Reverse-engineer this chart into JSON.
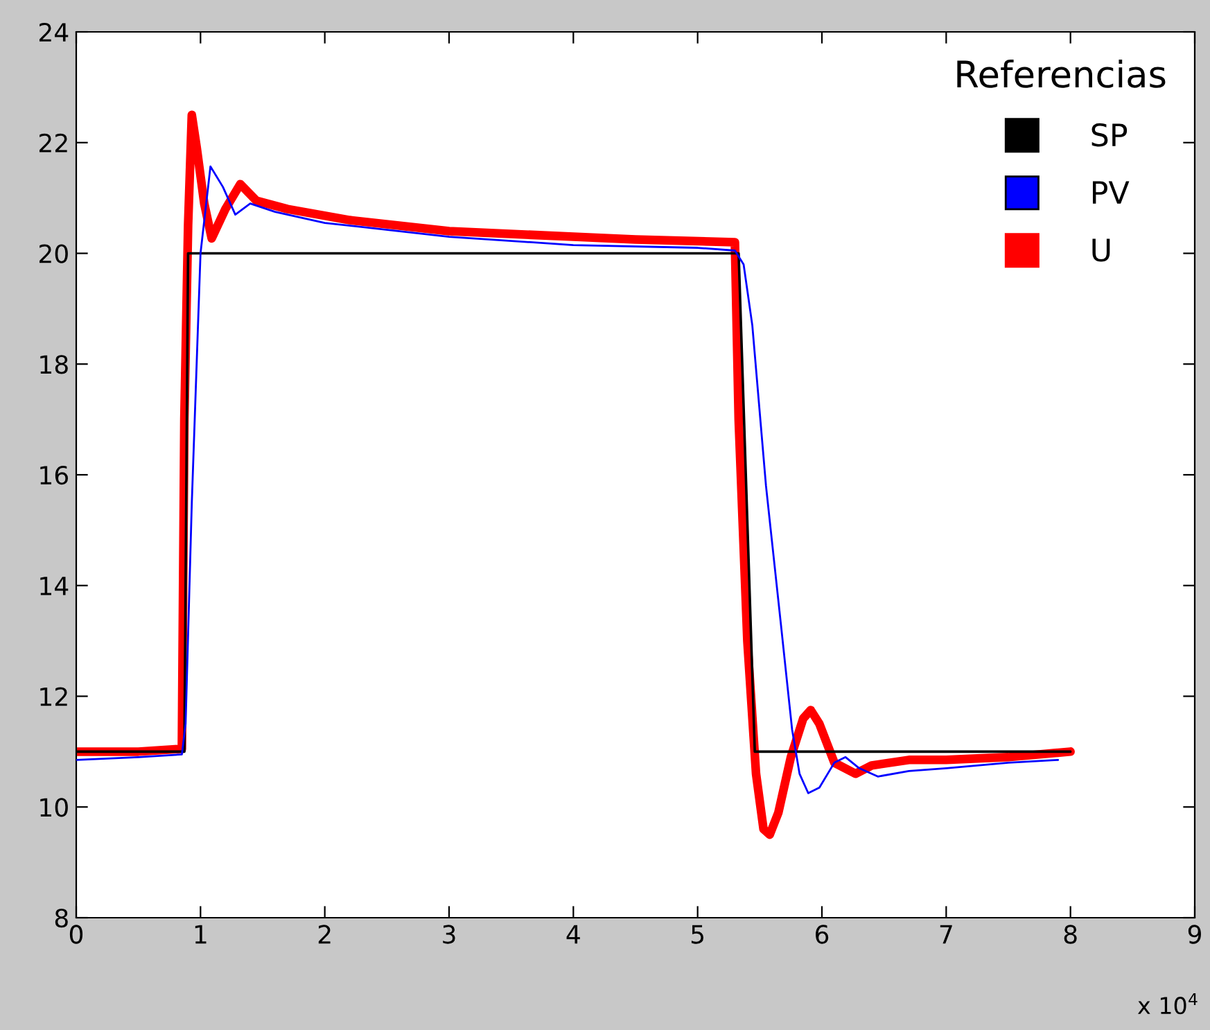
{
  "chart_data": {
    "type": "line",
    "legend_title": "Referencias",
    "legend": "top right",
    "grid": false,
    "xlim": [
      0,
      9
    ],
    "xticks": [
      0,
      1,
      2,
      3,
      4,
      5,
      6,
      7,
      8,
      9
    ],
    "ylim": [
      8,
      24
    ],
    "yticks": [
      8,
      10,
      12,
      14,
      16,
      18,
      20,
      22,
      24
    ],
    "annotations": [
      "x 10$^{4}$"
    ],
    "series": [
      {
        "name": "SP",
        "color": "#000000",
        "x": [
          0,
          0.87,
          0.9,
          5.33,
          5.46,
          8.0
        ],
        "values": [
          11,
          11,
          20,
          20,
          11,
          11
        ]
      },
      {
        "name": "PV",
        "color": "#0000ff",
        "x": [
          0,
          0.5,
          0.85,
          0.88,
          0.93,
          1.0,
          1.08,
          1.18,
          1.28,
          1.4,
          1.6,
          2.0,
          3.0,
          4.0,
          5.0,
          5.3,
          5.37,
          5.44,
          5.55,
          5.67,
          5.76,
          5.82,
          5.89,
          5.98,
          6.1,
          6.19,
          6.3,
          6.45,
          6.7,
          7.0,
          7.5,
          7.9
        ],
        "values": [
          10.85,
          10.9,
          10.95,
          11.5,
          15.5,
          20.0,
          21.57,
          21.2,
          20.7,
          20.9,
          20.75,
          20.55,
          20.3,
          20.15,
          20.1,
          20.05,
          19.8,
          18.7,
          15.8,
          13.3,
          11.4,
          10.6,
          10.25,
          10.35,
          10.8,
          10.9,
          10.7,
          10.55,
          10.65,
          10.7,
          10.8,
          10.85
        ]
      },
      {
        "name": "U",
        "color": "#ff0000",
        "x": [
          0,
          0.5,
          0.85,
          0.87,
          0.9,
          0.93,
          0.97,
          1.03,
          1.09,
          1.2,
          1.32,
          1.45,
          1.7,
          2.2,
          3.0,
          4.0,
          4.5,
          5.3,
          5.33,
          5.4,
          5.47,
          5.53,
          5.58,
          5.65,
          5.75,
          5.85,
          5.91,
          5.98,
          6.1,
          6.27,
          6.4,
          6.7,
          7.0,
          7.5,
          8.0
        ],
        "values": [
          11.0,
          11.0,
          11.05,
          17.0,
          20.5,
          22.5,
          21.9,
          20.9,
          20.27,
          20.8,
          21.25,
          20.95,
          20.8,
          20.6,
          20.4,
          20.3,
          20.25,
          20.2,
          17.0,
          13.0,
          10.6,
          9.6,
          9.5,
          9.9,
          10.9,
          11.6,
          11.75,
          11.5,
          10.8,
          10.6,
          10.75,
          10.85,
          10.85,
          10.9,
          11.0
        ]
      }
    ]
  }
}
